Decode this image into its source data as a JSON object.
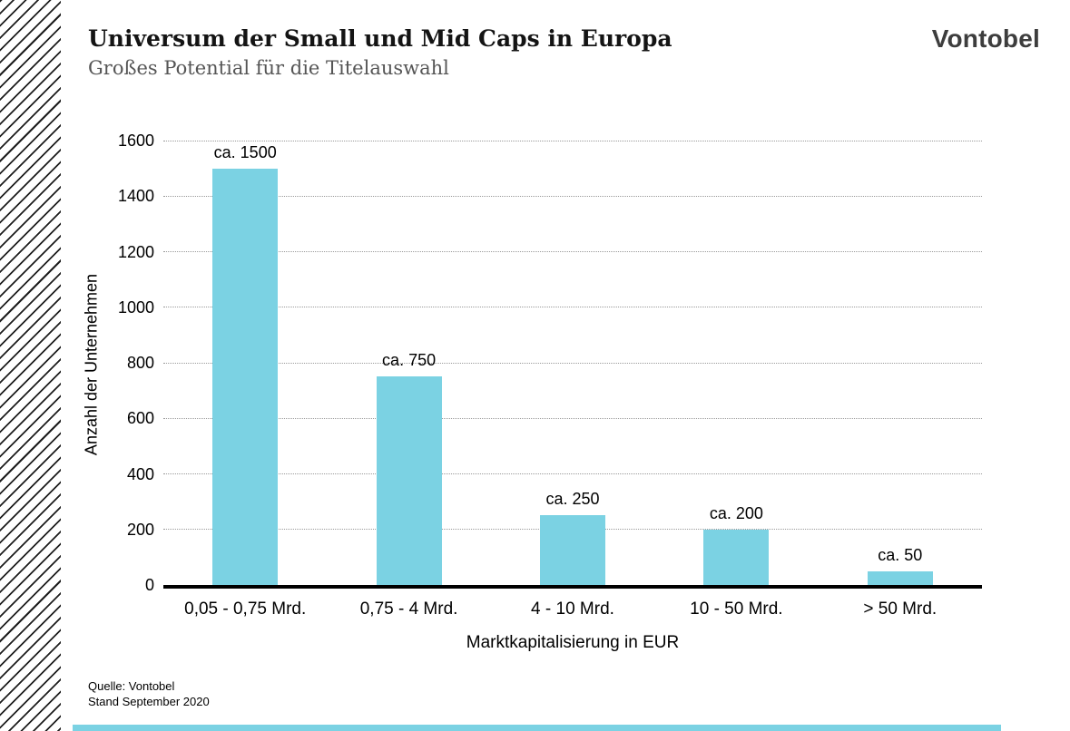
{
  "header": {
    "title": "Universum der Small und Mid Caps in Europa",
    "subtitle": "Großes Potential für die Titelauswahl",
    "logo": "Vontobel"
  },
  "chart_data": {
    "type": "bar",
    "title": "Universum der Small und Mid Caps in Europa",
    "subtitle": "Großes Potential für die Titelauswahl",
    "categories": [
      "0,05 - 0,75 Mrd.",
      "0,75 - 4 Mrd.",
      "4 - 10 Mrd.",
      "10 - 50 Mrd.",
      "> 50 Mrd."
    ],
    "values": [
      1500,
      750,
      250,
      200,
      50
    ],
    "bar_labels": [
      "ca. 1500",
      "ca. 750",
      "ca. 250",
      "ca. 200",
      "ca. 50"
    ],
    "xlabel": "Marktkapitalisierung in EUR",
    "ylabel": "Anzahl der Unternehmen",
    "ylim": [
      0,
      1600
    ],
    "yticks": [
      0,
      200,
      400,
      600,
      800,
      1000,
      1200,
      1400,
      1600
    ],
    "grid": "horizontal-dotted",
    "legend": "none",
    "bar_color": "#7BD2E3"
  },
  "footer": {
    "source_line1": "Quelle: Vontobel",
    "source_line2": "Stand September 2020"
  },
  "colors": {
    "bar": "#7BD2E3",
    "accent_strip": "#7BD2E3",
    "hatch": "#1e1e1e",
    "subtitle_gray": "#555555",
    "logo_gray": "#3d3d3d"
  }
}
